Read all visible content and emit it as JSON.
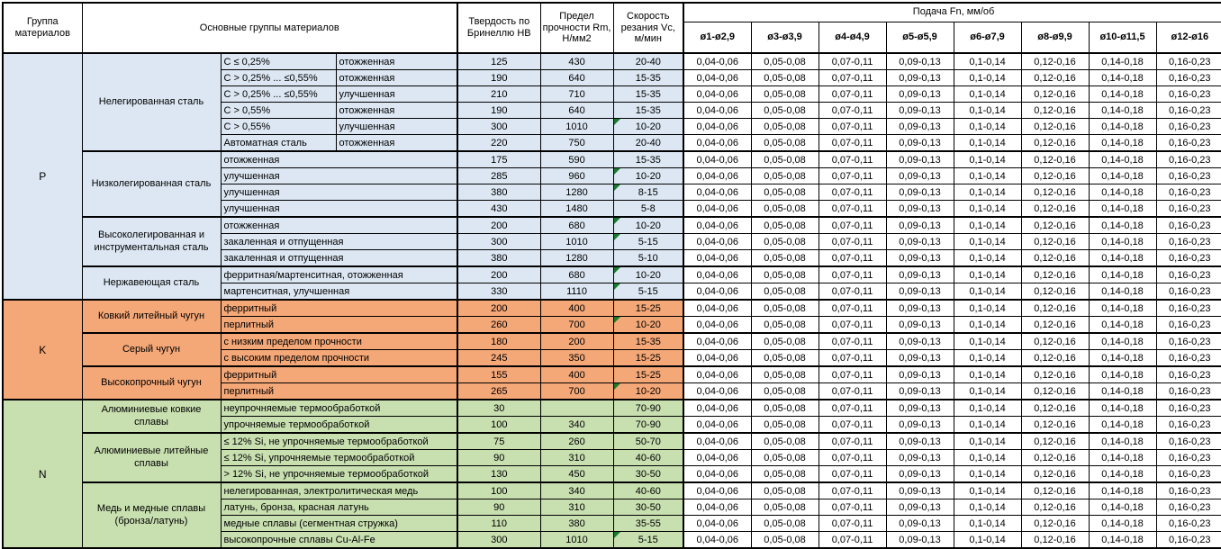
{
  "header": {
    "group_label": "Группа материалов",
    "main_label": "Основные группы материалов",
    "hardness_label": "Твердость по Бринеллю HB",
    "strength_label": "Предел прочности Rm, Н/мм2",
    "speed_label": "Скорость резания Vc, м/мин",
    "feed_label": "Подача Fn, мм/об",
    "diameters": [
      "ø1-ø2,9",
      "ø3-ø3,9",
      "ø4-ø4,9",
      "ø5-ø5,9",
      "ø6-ø7,9",
      "ø8-ø9,9",
      "ø10-ø11,5",
      "ø12-ø16"
    ]
  },
  "feed_values": [
    "0,04-0,06",
    "0,05-0,08",
    "0,07-0,11",
    "0,09-0,13",
    "0,1-0,14",
    "0,12-0,16",
    "0,14-0,18",
    "0,16-0,23"
  ],
  "colors": {
    "P": "#dce7f3",
    "K": "#f4a777",
    "N": "#c8dfb0",
    "comment_flag": "#1a7a2f",
    "border": "#000000"
  },
  "sections": [
    {
      "letter": "P",
      "subgroups": [
        {
          "name": "Нелегированная сталь",
          "rows": [
            {
              "spec1": "C ≤ 0,25%",
              "spec2": "отожженная",
              "hb": "125",
              "rm": "430",
              "vc": "20-40"
            },
            {
              "spec1": "C > 0,25% ... ≤0,55%",
              "spec2": "отожженная",
              "hb": "190",
              "rm": "640",
              "vc": "15-35"
            },
            {
              "spec1": "C > 0,25% ... ≤0,55%",
              "spec2": "улучшенная",
              "hb": "210",
              "rm": "710",
              "vc": "15-35"
            },
            {
              "spec1": "C > 0,55%",
              "spec2": "отожженная",
              "hb": "190",
              "rm": "640",
              "vc": "15-35"
            },
            {
              "spec1": "C > 0,55%",
              "spec2": "улучшенная",
              "hb": "300",
              "rm": "1010",
              "vc": "10-20",
              "flag": true
            },
            {
              "spec1": "Автоматная сталь",
              "spec2": "отожженная",
              "hb": "220",
              "rm": "750",
              "vc": "20-40"
            }
          ]
        },
        {
          "name": "Низколегированная сталь",
          "rows": [
            {
              "spec": "отожженная",
              "hb": "175",
              "rm": "590",
              "vc": "15-35"
            },
            {
              "spec": "улучшенная",
              "hb": "285",
              "rm": "960",
              "vc": "10-20",
              "flag": true
            },
            {
              "spec": "улучшенная",
              "hb": "380",
              "rm": "1280",
              "vc": "8-15",
              "flag": true
            },
            {
              "spec": "улучшенная",
              "hb": "430",
              "rm": "1480",
              "vc": "5-8"
            }
          ]
        },
        {
          "name": "Высоколегированная и инструментальная сталь",
          "rows": [
            {
              "spec": "отожженная",
              "hb": "200",
              "rm": "680",
              "vc": "10-20",
              "flag": true
            },
            {
              "spec": "закаленная и отпущенная",
              "hb": "300",
              "rm": "1010",
              "vc": "5-15",
              "flag": true
            },
            {
              "spec": "закаленная и отпущенная",
              "hb": "380",
              "rm": "1280",
              "vc": "5-10"
            }
          ]
        },
        {
          "name": "Нержавеющая сталь",
          "rows": [
            {
              "spec": "ферритная/мартенситная, отожженная",
              "hb": "200",
              "rm": "680",
              "vc": "10-20",
              "flag": true
            },
            {
              "spec": "мартенситная, улучшенная",
              "hb": "330",
              "rm": "1110",
              "vc": "5-15",
              "flag": true
            }
          ]
        }
      ]
    },
    {
      "letter": "K",
      "subgroups": [
        {
          "name": "Ковкий литейный чугун",
          "rows": [
            {
              "spec": "ферритный",
              "hb": "200",
              "rm": "400",
              "vc": "15-25"
            },
            {
              "spec": "перлитный",
              "hb": "260",
              "rm": "700",
              "vc": "10-20",
              "flag": true
            }
          ]
        },
        {
          "name": "Серый чугун",
          "rows": [
            {
              "spec": "с низким пределом прочности",
              "hb": "180",
              "rm": "200",
              "vc": "15-35"
            },
            {
              "spec": "с высоким пределом прочности",
              "hb": "245",
              "rm": "350",
              "vc": "15-25"
            }
          ]
        },
        {
          "name": "Высокопрочный чугун",
          "rows": [
            {
              "spec": "ферритный",
              "hb": "155",
              "rm": "400",
              "vc": "15-25"
            },
            {
              "spec": "перлитный",
              "hb": "265",
              "rm": "700",
              "vc": "10-20",
              "flag": true
            }
          ]
        }
      ]
    },
    {
      "letter": "N",
      "subgroups": [
        {
          "name": "Алюминиевые ковкие сплавы",
          "rows": [
            {
              "spec": "неупрочняемые термообработкой",
              "hb": "30",
              "rm": "",
              "vc": "70-90"
            },
            {
              "spec": "упрочняемые термообработкой",
              "hb": "100",
              "rm": "340",
              "vc": "70-90"
            }
          ]
        },
        {
          "name": "Алюминиевые литейные сплавы",
          "rows": [
            {
              "spec": "≤ 12% Si, не упрочняемые термообработкой",
              "hb": "75",
              "rm": "260",
              "vc": "50-70"
            },
            {
              "spec": "≤ 12% Si, упрочняемые термообработкой",
              "hb": "90",
              "rm": "310",
              "vc": "40-60"
            },
            {
              "spec": "> 12% Si, не упрочняемые термообработкой",
              "hb": "130",
              "rm": "450",
              "vc": "30-50"
            }
          ]
        },
        {
          "name": "Медь и медные сплавы (бронза/латунь)",
          "rows": [
            {
              "spec": "нелегированная, электролитическая медь",
              "hb": "100",
              "rm": "340",
              "vc": "40-60"
            },
            {
              "spec": "латунь, бронза, красная латунь",
              "hb": "90",
              "rm": "310",
              "vc": "30-50"
            },
            {
              "spec": "медные сплавы (сегментная стружка)",
              "hb": "110",
              "rm": "380",
              "vc": "35-55"
            },
            {
              "spec": "высокопрочные сплавы Cu-Al-Fe",
              "hb": "300",
              "rm": "1010",
              "vc": "5-15",
              "flag": true
            }
          ]
        }
      ]
    }
  ]
}
